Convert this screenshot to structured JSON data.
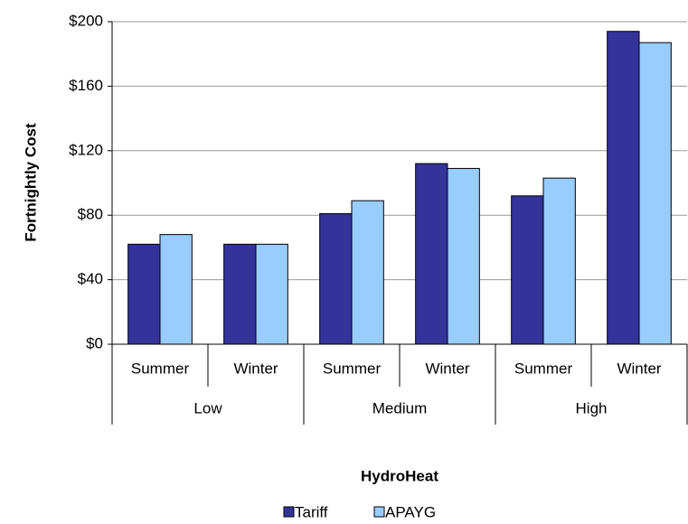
{
  "chart_data": {
    "type": "bar",
    "x_label": "HydroHeat",
    "y_label": "Fortnightly Cost",
    "categories": [
      "Summer",
      "Winter",
      "Summer",
      "Winter",
      "Summer",
      "Winter"
    ],
    "category_groups": [
      "Low",
      "Medium",
      "High"
    ],
    "series": [
      {
        "name": "Tariff",
        "color": "#333399",
        "values": [
          62,
          62,
          81,
          112,
          92,
          194
        ]
      },
      {
        "name": "APAYG",
        "color": "#99ccff",
        "values": [
          68,
          62,
          89,
          109,
          103,
          187
        ]
      }
    ],
    "ylim": [
      0,
      200
    ],
    "yticks": [
      {
        "value": 0,
        "label": "$0"
      },
      {
        "value": 40,
        "label": "$40"
      },
      {
        "value": 80,
        "label": "$80"
      },
      {
        "value": 120,
        "label": "$120"
      },
      {
        "value": 160,
        "label": "$160"
      },
      {
        "value": 200,
        "label": "$200"
      }
    ],
    "grid": true,
    "legend": "bottom"
  }
}
